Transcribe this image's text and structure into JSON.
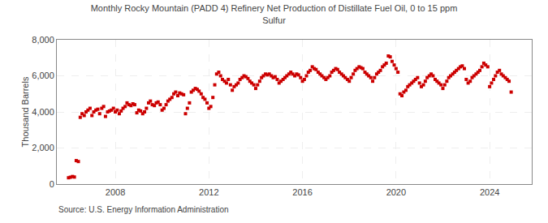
{
  "chart_data": {
    "type": "scatter",
    "title": "Monthly Rocky Mountain (PADD 4) Refinery Net Production of Distillate Fuel Oil, 0 to 15 ppm\nSulfur",
    "ylabel": "Thousand Barrels",
    "annotations": [
      "Source: U.S. Energy Information Administration"
    ],
    "color": "#CC0000",
    "marker": "square",
    "grid": true,
    "xlim": [
      2005.5,
      2025.8
    ],
    "xticks": [
      2008,
      2012,
      2016,
      2020,
      2024
    ],
    "ylim": [
      0,
      8000
    ],
    "yticks": [
      0,
      {
        "value": 2000,
        "label": "2,000"
      },
      {
        "value": 4000,
        "label": "4,000"
      },
      {
        "value": 6000,
        "label": "6,000"
      },
      {
        "value": 8000,
        "label": "8,000"
      }
    ],
    "x": [
      2006.0,
      2006.08,
      2006.17,
      2006.25,
      2006.33,
      2006.42,
      2006.5,
      2006.58,
      2006.67,
      2006.75,
      2006.83,
      2006.92,
      2007.0,
      2007.08,
      2007.17,
      2007.25,
      2007.33,
      2007.42,
      2007.5,
      2007.58,
      2007.67,
      2007.75,
      2007.83,
      2007.92,
      2008.0,
      2008.08,
      2008.17,
      2008.25,
      2008.33,
      2008.42,
      2008.5,
      2008.58,
      2008.67,
      2008.75,
      2008.83,
      2008.92,
      2009.0,
      2009.08,
      2009.17,
      2009.25,
      2009.33,
      2009.42,
      2009.5,
      2009.58,
      2009.67,
      2009.75,
      2009.83,
      2009.92,
      2010.0,
      2010.08,
      2010.17,
      2010.25,
      2010.33,
      2010.42,
      2010.5,
      2010.58,
      2010.67,
      2010.75,
      2010.83,
      2010.92,
      2011.0,
      2011.08,
      2011.17,
      2011.25,
      2011.33,
      2011.42,
      2011.5,
      2011.58,
      2011.67,
      2011.75,
      2011.83,
      2011.92,
      2012.0,
      2012.08,
      2012.17,
      2012.25,
      2012.33,
      2012.42,
      2012.5,
      2012.58,
      2012.67,
      2012.75,
      2012.83,
      2012.92,
      2013.0,
      2013.08,
      2013.17,
      2013.25,
      2013.33,
      2013.42,
      2013.5,
      2013.58,
      2013.67,
      2013.75,
      2013.83,
      2013.92,
      2014.0,
      2014.08,
      2014.17,
      2014.25,
      2014.33,
      2014.42,
      2014.5,
      2014.58,
      2014.67,
      2014.75,
      2014.83,
      2014.92,
      2015.0,
      2015.08,
      2015.17,
      2015.25,
      2015.33,
      2015.42,
      2015.5,
      2015.58,
      2015.67,
      2015.75,
      2015.83,
      2015.92,
      2016.0,
      2016.08,
      2016.17,
      2016.25,
      2016.33,
      2016.42,
      2016.5,
      2016.58,
      2016.67,
      2016.75,
      2016.83,
      2016.92,
      2017.0,
      2017.08,
      2017.17,
      2017.25,
      2017.33,
      2017.42,
      2017.5,
      2017.58,
      2017.67,
      2017.75,
      2017.83,
      2017.92,
      2018.0,
      2018.08,
      2018.17,
      2018.25,
      2018.33,
      2018.42,
      2018.5,
      2018.58,
      2018.67,
      2018.75,
      2018.83,
      2018.92,
      2019.0,
      2019.08,
      2019.17,
      2019.25,
      2019.33,
      2019.42,
      2019.5,
      2019.58,
      2019.67,
      2019.75,
      2019.83,
      2019.92,
      2020.0,
      2020.08,
      2020.17,
      2020.25,
      2020.33,
      2020.42,
      2020.5,
      2020.58,
      2020.67,
      2020.75,
      2020.83,
      2020.92,
      2021.0,
      2021.08,
      2021.17,
      2021.25,
      2021.33,
      2021.42,
      2021.5,
      2021.58,
      2021.67,
      2021.75,
      2021.83,
      2021.92,
      2022.0,
      2022.08,
      2022.17,
      2022.25,
      2022.33,
      2022.42,
      2022.5,
      2022.58,
      2022.67,
      2022.75,
      2022.83,
      2022.92,
      2023.0,
      2023.08,
      2023.17,
      2023.25,
      2023.33,
      2023.42,
      2023.5,
      2023.58,
      2023.67,
      2023.75,
      2023.83,
      2023.92,
      2024.0,
      2024.08,
      2024.17,
      2024.25,
      2024.33,
      2024.42,
      2024.5,
      2024.58,
      2024.67,
      2024.75,
      2024.83,
      2024.92
    ],
    "values": [
      350,
      380,
      420,
      390,
      1300,
      1250,
      3700,
      3900,
      3800,
      4000,
      4100,
      4200,
      3800,
      4000,
      4100,
      4150,
      3900,
      4200,
      4300,
      3750,
      4000,
      4050,
      4100,
      4200,
      4000,
      4100,
      3900,
      4050,
      4200,
      4300,
      4500,
      4400,
      4350,
      4450,
      4400,
      3950,
      4100,
      4050,
      3900,
      4000,
      4200,
      4500,
      4600,
      4400,
      4350,
      4500,
      4550,
      4400,
      4100,
      4200,
      4400,
      4600,
      4700,
      4800,
      5000,
      5100,
      4900,
      5050,
      5000,
      4950,
      3900,
      4200,
      4500,
      5100,
      5200,
      5300,
      5250,
      5150,
      5000,
      4800,
      4700,
      4500,
      4200,
      4300,
      4800,
      5500,
      6100,
      6200,
      6000,
      5800,
      5700,
      5600,
      5800,
      5500,
      5200,
      5400,
      5500,
      5600,
      5800,
      5900,
      6000,
      5950,
      5850,
      5700,
      5600,
      5500,
      5300,
      5500,
      5700,
      5900,
      6000,
      6100,
      6050,
      6100,
      6000,
      5900,
      5950,
      5800,
      5600,
      5700,
      5800,
      5900,
      6000,
      6100,
      6200,
      6100,
      6000,
      6100,
      6050,
      5900,
      5700,
      5800,
      6000,
      6200,
      6300,
      6500,
      6400,
      6350,
      6200,
      6100,
      6000,
      5900,
      5800,
      5900,
      6000,
      6200,
      6300,
      6400,
      6350,
      6200,
      6100,
      6000,
      5900,
      5800,
      5700,
      5900,
      6100,
      6300,
      6400,
      6500,
      6450,
      6400,
      6200,
      6100,
      6000,
      5900,
      5700,
      5900,
      6100,
      6200,
      6300,
      6500,
      6600,
      6700,
      7100,
      7050,
      6800,
      6600,
      6400,
      6200,
      5000,
      4900,
      5100,
      5200,
      5400,
      5500,
      5600,
      5700,
      5800,
      5900,
      5600,
      5400,
      5500,
      5700,
      5900,
      6000,
      6100,
      6000,
      5800,
      5700,
      5600,
      5500,
      5300,
      5500,
      5700,
      5900,
      6000,
      6100,
      6200,
      6300,
      6400,
      6500,
      6550,
      6400,
      5800,
      5600,
      5700,
      5900,
      6000,
      6100,
      6200,
      6300,
      6500,
      6700,
      6600,
      6500,
      5400,
      5600,
      5800,
      6000,
      6200,
      6300,
      6100,
      6000,
      5900,
      5800,
      5700,
      5100
    ]
  }
}
